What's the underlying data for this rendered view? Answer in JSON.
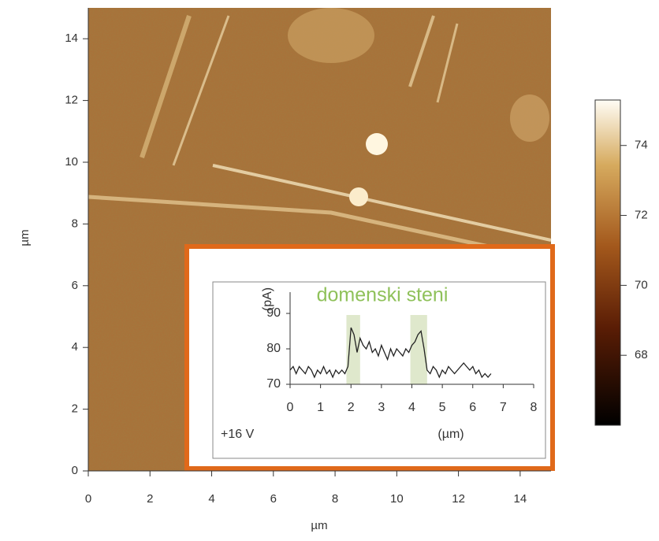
{
  "chart_data": [
    {
      "type": "image",
      "xlabel": "µm",
      "ylabel": "µm",
      "xlim": [
        0,
        15
      ],
      "ylim": [
        0,
        15
      ],
      "xticks": [
        0,
        2,
        4,
        6,
        8,
        10,
        12,
        14
      ],
      "yticks": [
        0,
        2,
        4,
        6,
        8,
        10,
        12,
        14
      ],
      "colorbar": {
        "clim": [
          66,
          75.3
        ],
        "ticks": [
          68,
          70,
          72,
          74
        ]
      }
    },
    {
      "type": "line",
      "title": "domenski steni",
      "ylabel": "(pA)",
      "xlabel": "(µm)",
      "annotation": "+16 V",
      "color": "#222222",
      "highlight_color": "#dfe8cc",
      "highlights": [
        [
          1.85,
          2.3
        ],
        [
          3.95,
          4.5
        ]
      ],
      "xlim": [
        0,
        8
      ],
      "ylim": [
        70,
        96
      ],
      "xticks": [
        0,
        1,
        2,
        3,
        4,
        5,
        6,
        7,
        8
      ],
      "yticks": [
        70,
        80,
        90
      ],
      "x": [
        0,
        0.1,
        0.2,
        0.3,
        0.4,
        0.5,
        0.6,
        0.7,
        0.8,
        0.9,
        1.0,
        1.1,
        1.2,
        1.3,
        1.4,
        1.5,
        1.6,
        1.7,
        1.8,
        1.9,
        2.0,
        2.1,
        2.2,
        2.3,
        2.4,
        2.5,
        2.6,
        2.7,
        2.8,
        2.9,
        3.0,
        3.1,
        3.2,
        3.3,
        3.4,
        3.5,
        3.6,
        3.7,
        3.8,
        3.9,
        4.0,
        4.1,
        4.2,
        4.3,
        4.4,
        4.5,
        4.6,
        4.7,
        4.8,
        4.9,
        5.0,
        5.1,
        5.2,
        5.3,
        5.4,
        5.5,
        5.6,
        5.7,
        5.8,
        5.9,
        6.0,
        6.1,
        6.2,
        6.3,
        6.4,
        6.5,
        6.6
      ],
      "values": [
        74,
        75,
        73,
        75,
        74,
        73,
        75,
        74,
        72,
        74,
        73,
        75,
        73,
        74,
        72,
        74,
        73,
        74,
        73,
        75,
        86,
        84,
        79,
        83,
        81,
        80,
        82,
        79,
        80,
        78,
        81,
        79,
        77,
        80,
        78,
        80,
        79,
        78,
        80,
        79,
        81,
        82,
        84,
        85,
        80,
        74,
        73,
        75,
        74,
        72,
        74,
        73,
        75,
        74,
        73,
        74,
        75,
        76,
        75,
        74,
        75,
        73,
        74,
        72,
        73,
        72,
        73
      ]
    }
  ]
}
